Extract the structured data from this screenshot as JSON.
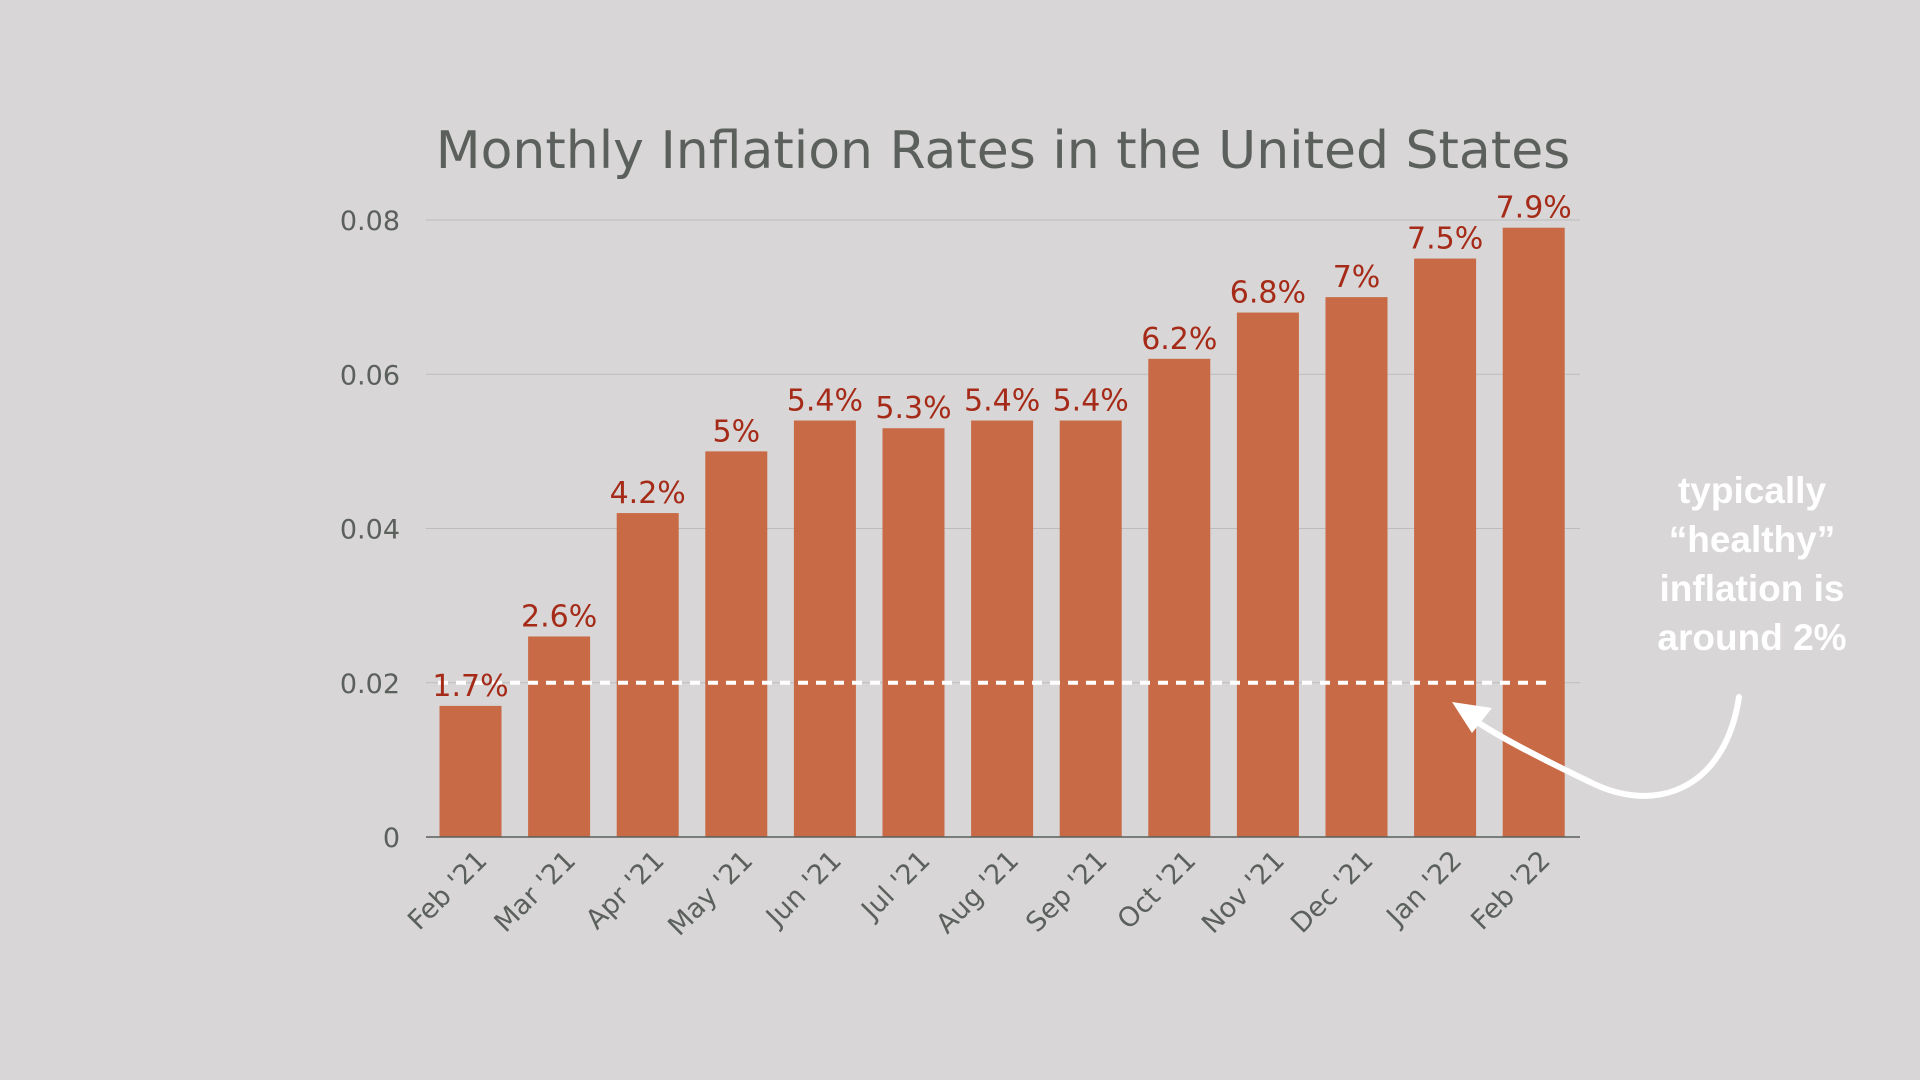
{
  "chart_data": {
    "type": "bar",
    "title": "Monthly Inflation Rates in the United States",
    "xlabel": "",
    "ylabel": "",
    "categories": [
      "Feb '21",
      "Mar '21",
      "Apr '21",
      "May '21",
      "Jun '21",
      "Jul '21",
      "Aug '21",
      "Sep '21",
      "Oct '21",
      "Nov '21",
      "Dec '21",
      "Jan '22",
      "Feb '22"
    ],
    "values": [
      0.017,
      0.026,
      0.042,
      0.05,
      0.054,
      0.053,
      0.054,
      0.054,
      0.062,
      0.068,
      0.07,
      0.075,
      0.079
    ],
    "data_labels": [
      "1.7%",
      "2.6%",
      "4.2%",
      "5%",
      "5.4%",
      "5.3%",
      "5.4%",
      "5.4%",
      "6.2%",
      "6.8%",
      "7%",
      "7.5%",
      "7.9%"
    ],
    "ylim": [
      0,
      0.08
    ],
    "yticks": [
      0,
      0.02,
      0.04,
      0.06,
      0.08
    ],
    "ytick_labels": [
      "0",
      "0.02",
      "0.04",
      "0.06",
      "0.08"
    ],
    "grid": true,
    "reference_line": {
      "value": 0.02,
      "style": "dashed",
      "color": "#ffffff"
    },
    "annotation": {
      "lines": [
        "typically",
        "“healthy”",
        "inflation is",
        "around 2%"
      ]
    },
    "colors": {
      "bar": "#c96a46",
      "data_label": "#a52a17",
      "title": "#5b605d",
      "axis_text": "#5b605d",
      "gridline": "#bdbbbb",
      "background": "#d8d6d6",
      "annotation": "#ffffff"
    }
  }
}
